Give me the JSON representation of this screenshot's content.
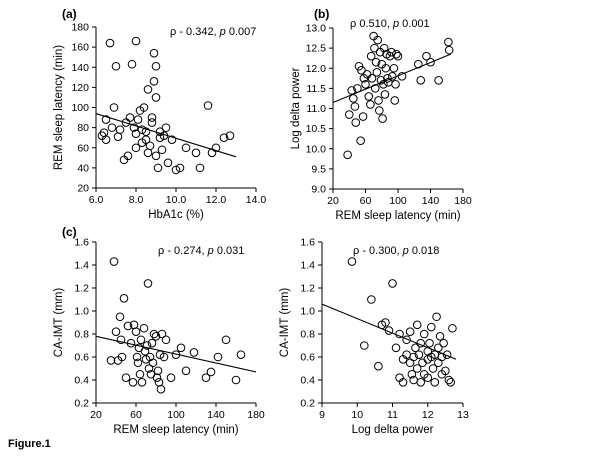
{
  "figure_caption": "Figure.1",
  "chart_data": [
    {
      "type": "scatter",
      "panel_label": "(a)",
      "stat_rho": "ρ - 0.342,",
      "stat_p": "p",
      "stat_pval": "0.007",
      "xlabel": "HbA1c (%)",
      "ylabel": "REM sleep latency (min)",
      "xlim": [
        6.0,
        14.0
      ],
      "ylim": [
        20,
        180
      ],
      "xticks": [
        6.0,
        8.0,
        10.0,
        12.0,
        14.0
      ],
      "xtick_labels": [
        "6.0",
        "8.0",
        "10.0",
        "12.0",
        "14.0"
      ],
      "yticks": [
        20,
        40,
        60,
        80,
        100,
        120,
        140,
        160,
        180
      ],
      "ytick_labels": [
        "20",
        "40",
        "60",
        "80",
        "100",
        "120",
        "140",
        "160",
        "180"
      ],
      "trend": [
        [
          6.0,
          94
        ],
        [
          13.0,
          51
        ]
      ],
      "points": [
        [
          6.3,
          72
        ],
        [
          6.4,
          75
        ],
        [
          6.5,
          68
        ],
        [
          6.5,
          88
        ],
        [
          6.7,
          164
        ],
        [
          6.8,
          80
        ],
        [
          6.9,
          100
        ],
        [
          7.0,
          141
        ],
        [
          7.1,
          71
        ],
        [
          7.2,
          78
        ],
        [
          7.4,
          48
        ],
        [
          7.5,
          85
        ],
        [
          7.6,
          52
        ],
        [
          7.7,
          90
        ],
        [
          7.8,
          143
        ],
        [
          7.9,
          80
        ],
        [
          8.0,
          166
        ],
        [
          8.0,
          60
        ],
        [
          8.0,
          74
        ],
        [
          8.1,
          88
        ],
        [
          8.2,
          97
        ],
        [
          8.3,
          65
        ],
        [
          8.3,
          78
        ],
        [
          8.4,
          100
        ],
        [
          8.5,
          76
        ],
        [
          8.5,
          68
        ],
        [
          8.6,
          55
        ],
        [
          8.6,
          118
        ],
        [
          8.7,
          62
        ],
        [
          8.8,
          85
        ],
        [
          8.8,
          90
        ],
        [
          8.9,
          126
        ],
        [
          8.9,
          154
        ],
        [
          9.0,
          110
        ],
        [
          9.0,
          141
        ],
        [
          9.0,
          52
        ],
        [
          9.1,
          40
        ],
        [
          9.2,
          70
        ],
        [
          9.2,
          76
        ],
        [
          9.3,
          58
        ],
        [
          9.4,
          72
        ],
        [
          9.5,
          80
        ],
        [
          9.6,
          45
        ],
        [
          9.8,
          68
        ],
        [
          10.0,
          38
        ],
        [
          10.2,
          40
        ],
        [
          10.5,
          60
        ],
        [
          11.0,
          55
        ],
        [
          11.2,
          40
        ],
        [
          11.6,
          102
        ],
        [
          11.8,
          55
        ],
        [
          12.0,
          60
        ],
        [
          12.4,
          70
        ],
        [
          12.7,
          72
        ]
      ]
    },
    {
      "type": "scatter",
      "panel_label": "(b)",
      "stat_rho": "ρ 0.510,",
      "stat_p": "p",
      "stat_pval": "0.001",
      "xlabel": "REM sleep latency (min)",
      "ylabel": "Log delta power",
      "xlim": [
        20,
        180
      ],
      "ylim": [
        9.0,
        13.0
      ],
      "xticks": [
        20,
        60,
        100,
        140,
        180
      ],
      "xtick_labels": [
        "20",
        "60",
        "100",
        "140",
        "180"
      ],
      "yticks": [
        9.0,
        9.5,
        10.0,
        10.5,
        11.0,
        11.5,
        12.0,
        12.5,
        13.0
      ],
      "ytick_labels": [
        "9.0",
        "9.5",
        "10.0",
        "10.5",
        "11.0",
        "11.5",
        "12.0",
        "12.5",
        "13.0"
      ],
      "trend": [
        [
          20,
          11.15
        ],
        [
          165,
          12.35
        ]
      ],
      "points": [
        [
          38,
          9.85
        ],
        [
          40,
          10.85
        ],
        [
          43,
          11.45
        ],
        [
          45,
          11.25
        ],
        [
          47,
          11.05
        ],
        [
          48,
          10.65
        ],
        [
          50,
          11.5
        ],
        [
          52,
          12.05
        ],
        [
          54,
          10.2
        ],
        [
          55,
          11.95
        ],
        [
          57,
          10.8
        ],
        [
          58,
          11.75
        ],
        [
          60,
          11.6
        ],
        [
          62,
          11.85
        ],
        [
          64,
          11.3
        ],
        [
          66,
          11.1
        ],
        [
          67,
          12.3
        ],
        [
          68,
          11.75
        ],
        [
          70,
          12.8
        ],
        [
          71,
          12.5
        ],
        [
          72,
          11.5
        ],
        [
          73,
          12.15
        ],
        [
          74,
          11.9
        ],
        [
          75,
          12.7
        ],
        [
          76,
          11.2
        ],
        [
          77,
          10.95
        ],
        [
          78,
          12.4
        ],
        [
          79,
          11.7
        ],
        [
          80,
          12.1
        ],
        [
          81,
          10.75
        ],
        [
          82,
          11.6
        ],
        [
          83,
          12.5
        ],
        [
          84,
          11.35
        ],
        [
          85,
          12.0
        ],
        [
          86,
          12.35
        ],
        [
          87,
          11.75
        ],
        [
          88,
          11.65
        ],
        [
          90,
          12.3
        ],
        [
          92,
          12.4
        ],
        [
          93,
          11.8
        ],
        [
          95,
          12.0
        ],
        [
          96,
          11.2
        ],
        [
          97,
          11.6
        ],
        [
          98,
          12.35
        ],
        [
          100,
          12.3
        ],
        [
          105,
          11.8
        ],
        [
          125,
          12.1
        ],
        [
          128,
          11.7
        ],
        [
          135,
          12.3
        ],
        [
          140,
          12.15
        ],
        [
          150,
          11.7
        ],
        [
          162,
          12.65
        ],
        [
          163,
          12.45
        ]
      ]
    },
    {
      "type": "scatter",
      "panel_label": "(c)",
      "stat_rho": "ρ - 0.274,",
      "stat_p": "p",
      "stat_pval": "0.031",
      "xlabel": "REM sleep latency (min)",
      "ylabel": "CA-IMT (mm)",
      "xlim": [
        20,
        180
      ],
      "ylim": [
        0.2,
        1.6
      ],
      "xticks": [
        20,
        60,
        100,
        140,
        180
      ],
      "xtick_labels": [
        "20",
        "60",
        "100",
        "140",
        "180"
      ],
      "yticks": [
        0.2,
        0.4,
        0.6,
        0.8,
        1.0,
        1.2,
        1.4,
        1.6
      ],
      "ytick_labels": [
        "0.2",
        "0.4",
        "0.6",
        "0.8",
        "1.0",
        "1.2",
        "1.4",
        "1.6"
      ],
      "trend": [
        [
          20,
          0.78
        ],
        [
          180,
          0.47
        ]
      ],
      "points": [
        [
          35,
          0.57
        ],
        [
          38,
          1.43
        ],
        [
          40,
          0.82
        ],
        [
          42,
          0.57
        ],
        [
          44,
          0.95
        ],
        [
          45,
          0.75
        ],
        [
          46,
          0.6
        ],
        [
          48,
          1.11
        ],
        [
          50,
          0.42
        ],
        [
          52,
          0.87
        ],
        [
          55,
          0.72
        ],
        [
          57,
          0.38
        ],
        [
          58,
          0.88
        ],
        [
          60,
          0.82
        ],
        [
          61,
          0.6
        ],
        [
          62,
          0.55
        ],
        [
          63,
          0.68
        ],
        [
          64,
          0.45
        ],
        [
          65,
          0.75
        ],
        [
          66,
          0.38
        ],
        [
          68,
          0.85
        ],
        [
          69,
          0.65
        ],
        [
          70,
          0.58
        ],
        [
          71,
          0.7
        ],
        [
          72,
          1.24
        ],
        [
          73,
          0.5
        ],
        [
          74,
          0.6
        ],
        [
          75,
          0.45
        ],
        [
          76,
          0.72
        ],
        [
          77,
          0.55
        ],
        [
          78,
          0.8
        ],
        [
          80,
          0.78
        ],
        [
          81,
          0.42
        ],
        [
          82,
          0.48
        ],
        [
          83,
          0.38
        ],
        [
          84,
          0.62
        ],
        [
          85,
          0.32
        ],
        [
          86,
          0.8
        ],
        [
          88,
          0.6
        ],
        [
          90,
          0.75
        ],
        [
          95,
          0.42
        ],
        [
          100,
          0.62
        ],
        [
          105,
          0.68
        ],
        [
          110,
          0.48
        ],
        [
          118,
          0.64
        ],
        [
          130,
          0.42
        ],
        [
          135,
          0.47
        ],
        [
          142,
          0.6
        ],
        [
          150,
          0.75
        ],
        [
          160,
          0.4
        ],
        [
          165,
          0.62
        ]
      ]
    },
    {
      "type": "scatter",
      "panel_label": "",
      "stat_rho": "ρ - 0.300,",
      "stat_p": "p",
      "stat_pval": "0.018",
      "xlabel": "Log delta power",
      "ylabel": "CA-IMT (mm)",
      "xlim": [
        9,
        13
      ],
      "ylim": [
        0.2,
        1.6
      ],
      "xticks": [
        9,
        10,
        11,
        12,
        13
      ],
      "xtick_labels": [
        "9",
        "10",
        "11",
        "12",
        "13"
      ],
      "yticks": [
        0.2,
        0.4,
        0.6,
        0.8,
        1.0,
        1.2,
        1.4,
        1.6
      ],
      "ytick_labels": [
        "0.2",
        "0.4",
        "0.6",
        "0.8",
        "1.0",
        "1.2",
        "1.4",
        "1.6"
      ],
      "trend": [
        [
          9.0,
          1.06
        ],
        [
          12.8,
          0.58
        ]
      ],
      "points": [
        [
          9.85,
          1.43
        ],
        [
          10.2,
          0.7
        ],
        [
          10.4,
          1.1
        ],
        [
          10.6,
          0.52
        ],
        [
          10.7,
          0.88
        ],
        [
          10.8,
          0.9
        ],
        [
          10.9,
          0.83
        ],
        [
          11.0,
          1.24
        ],
        [
          11.1,
          0.68
        ],
        [
          11.2,
          0.8
        ],
        [
          11.2,
          0.42
        ],
        [
          11.3,
          0.58
        ],
        [
          11.3,
          0.38
        ],
        [
          11.4,
          0.62
        ],
        [
          11.4,
          0.75
        ],
        [
          11.5,
          0.55
        ],
        [
          11.5,
          0.82
        ],
        [
          11.55,
          0.45
        ],
        [
          11.6,
          0.6
        ],
        [
          11.6,
          0.4
        ],
        [
          11.65,
          0.68
        ],
        [
          11.7,
          0.88
        ],
        [
          11.7,
          0.5
        ],
        [
          11.75,
          0.62
        ],
        [
          11.8,
          0.38
        ],
        [
          11.8,
          0.72
        ],
        [
          11.85,
          0.55
        ],
        [
          11.9,
          0.8
        ],
        [
          11.9,
          0.45
        ],
        [
          12.0,
          0.58
        ],
        [
          12.0,
          0.65
        ],
        [
          12.0,
          0.42
        ],
        [
          12.05,
          0.72
        ],
        [
          12.1,
          0.6
        ],
        [
          12.1,
          0.86
        ],
        [
          12.15,
          0.5
        ],
        [
          12.2,
          0.62
        ],
        [
          12.2,
          0.38
        ],
        [
          12.25,
          0.95
        ],
        [
          12.3,
          0.68
        ],
        [
          12.3,
          0.55
        ],
        [
          12.35,
          0.78
        ],
        [
          12.4,
          0.6
        ],
        [
          12.4,
          0.45
        ],
        [
          12.45,
          0.72
        ],
        [
          12.5,
          0.48
        ],
        [
          12.55,
          0.62
        ],
        [
          12.6,
          0.4
        ],
        [
          12.65,
          0.38
        ],
        [
          12.7,
          0.85
        ]
      ]
    }
  ]
}
